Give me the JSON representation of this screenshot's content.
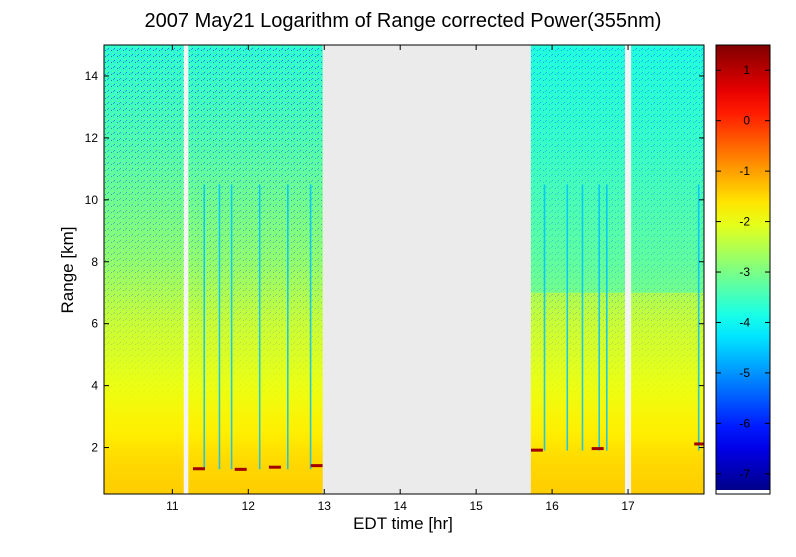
{
  "chart_data": {
    "type": "heatmap",
    "title": "2007 May21  Logarithm of Range corrected Power(355nm)",
    "xlabel": "EDT time [hr]",
    "ylabel": "Range [km]",
    "xlim": [
      10.1,
      18.0
    ],
    "ylim": [
      0.5,
      15.0
    ],
    "x_ticks": [
      11,
      12,
      13,
      14,
      15,
      16,
      17
    ],
    "y_ticks": [
      2,
      4,
      6,
      8,
      10,
      12,
      14
    ],
    "colorbar": {
      "colormap": "jet",
      "clim": [
        -7.4,
        1.5
      ],
      "ticks": [
        1,
        0,
        -1,
        -2,
        -3,
        -4,
        -5,
        -6,
        -7
      ]
    },
    "no_data_color": "#ebebeb",
    "data_gaps": [
      {
        "start": 11.15,
        "end": 11.21
      },
      {
        "start": 12.98,
        "end": 15.72
      },
      {
        "start": 16.96,
        "end": 17.04
      }
    ],
    "boundary_layer_top_km": [
      {
        "time": 11.35,
        "height": 1.3
      },
      {
        "time": 11.9,
        "height": 1.28
      },
      {
        "time": 12.35,
        "height": 1.35
      },
      {
        "time": 12.9,
        "height": 1.4
      },
      {
        "time": 15.8,
        "height": 1.9
      },
      {
        "time": 16.6,
        "height": 1.95
      },
      {
        "time": 17.95,
        "height": 2.1
      }
    ],
    "cloud_columns_hr": [
      11.42,
      11.62,
      11.78,
      12.15,
      12.52,
      12.82,
      15.9,
      16.2,
      16.4,
      16.62,
      16.72,
      17.93
    ],
    "log_power_profile": [
      {
        "range_km": 0.5,
        "value": -1.4
      },
      {
        "range_km": 1.5,
        "value": -1.5
      },
      {
        "range_km": 2.5,
        "value": -1.7
      },
      {
        "range_km": 4,
        "value": -2.0
      },
      {
        "range_km": 6,
        "value": -2.3
      },
      {
        "range_km": 8,
        "value": -2.8
      },
      {
        "range_km": 10,
        "value": -3.1
      },
      {
        "range_km": 12,
        "value": -3.4
      },
      {
        "range_km": 15,
        "value": -3.7
      }
    ]
  }
}
